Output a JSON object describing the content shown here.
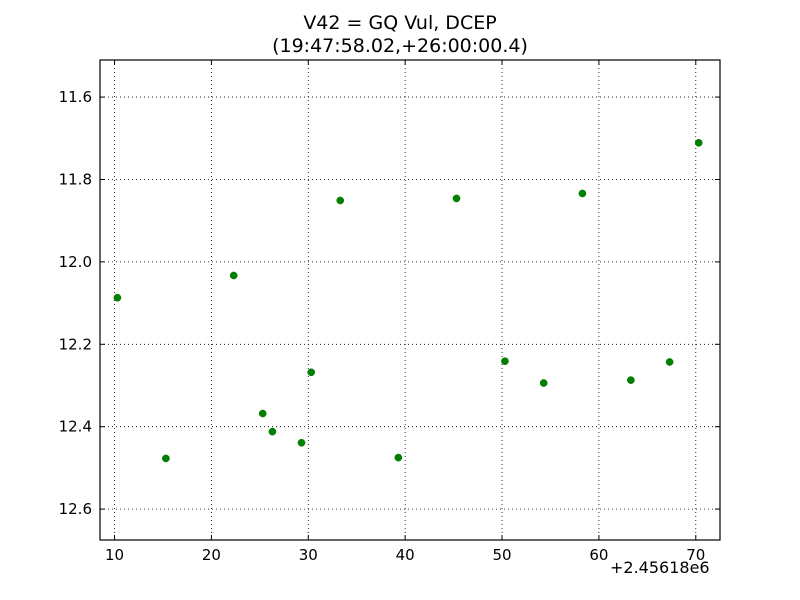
{
  "chart_data": {
    "type": "scatter",
    "title_line1": "V42 = GQ Vul, DCEP",
    "title_line2": "(19:47:58.02,+26:00:00.4)",
    "x_offset_label": "+2.45618e6",
    "xlabel": "",
    "ylabel": "",
    "xlim": [
      8.5,
      72.5
    ],
    "ylim": [
      12.675,
      11.51
    ],
    "y_inverted": true,
    "grid": true,
    "marker_color": "#007f00",
    "x_ticks": [
      10,
      20,
      30,
      40,
      50,
      60,
      70
    ],
    "x_tick_labels": [
      "10",
      "20",
      "30",
      "40",
      "50",
      "60",
      "70"
    ],
    "y_ticks": [
      11.6,
      11.8,
      12.0,
      12.2,
      12.4,
      12.6
    ],
    "y_tick_labels": [
      "11.6",
      "11.8",
      "12.0",
      "12.2",
      "12.4",
      "12.6"
    ],
    "points": [
      {
        "x": 10.3,
        "y": 12.087
      },
      {
        "x": 15.3,
        "y": 12.477
      },
      {
        "x": 22.3,
        "y": 12.033
      },
      {
        "x": 25.3,
        "y": 12.368
      },
      {
        "x": 26.3,
        "y": 12.412
      },
      {
        "x": 29.3,
        "y": 12.439
      },
      {
        "x": 30.3,
        "y": 12.268
      },
      {
        "x": 33.3,
        "y": 11.851
      },
      {
        "x": 39.3,
        "y": 12.475
      },
      {
        "x": 45.3,
        "y": 11.846
      },
      {
        "x": 50.3,
        "y": 12.241
      },
      {
        "x": 54.3,
        "y": 12.294
      },
      {
        "x": 58.3,
        "y": 11.834
      },
      {
        "x": 63.3,
        "y": 12.287
      },
      {
        "x": 67.3,
        "y": 12.243
      },
      {
        "x": 70.3,
        "y": 11.711
      }
    ]
  }
}
